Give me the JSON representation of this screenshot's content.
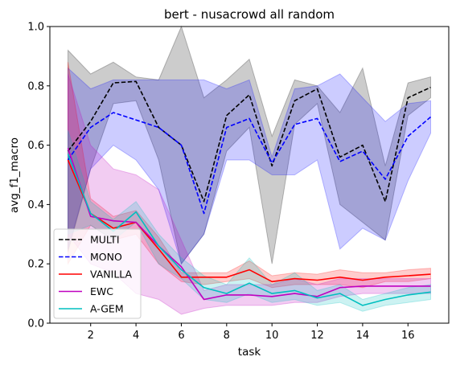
{
  "chart_data": {
    "type": "line",
    "title": "bert - nusacrowd all random",
    "xlabel": "task",
    "ylabel": "avg_f1_macro",
    "xlim": [
      0.2,
      17.8
    ],
    "ylim": [
      0.0,
      1.0
    ],
    "xticks": [
      2,
      4,
      6,
      8,
      10,
      12,
      14,
      16
    ],
    "yticks": [
      0.0,
      0.2,
      0.4,
      0.6,
      0.8,
      1.0
    ],
    "legend_position": "lower-left",
    "grid": false,
    "x": [
      1,
      2,
      3,
      4,
      5,
      6,
      7,
      8,
      9,
      10,
      11,
      12,
      13,
      14,
      15,
      16,
      17
    ],
    "series": [
      {
        "name": "MULTI",
        "color": "#000000",
        "dash": true,
        "values": [
          0.58,
          0.68,
          0.81,
          0.815,
          0.66,
          0.6,
          0.41,
          0.7,
          0.77,
          0.53,
          0.75,
          0.79,
          0.56,
          0.6,
          0.41,
          0.76,
          0.795
        ],
        "lower": [
          0.24,
          0.52,
          0.74,
          0.75,
          0.55,
          0.2,
          0.3,
          0.58,
          0.66,
          0.2,
          0.67,
          0.74,
          0.4,
          0.34,
          0.28,
          0.7,
          0.76
        ],
        "upper": [
          0.92,
          0.84,
          0.88,
          0.83,
          0.82,
          1.0,
          0.76,
          0.82,
          0.89,
          0.63,
          0.82,
          0.8,
          0.71,
          0.86,
          0.53,
          0.81,
          0.83
        ]
      },
      {
        "name": "MONO",
        "color": "#0000ff",
        "dash": true,
        "values": [
          0.55,
          0.66,
          0.71,
          0.685,
          0.66,
          0.6,
          0.37,
          0.66,
          0.69,
          0.54,
          0.67,
          0.69,
          0.545,
          0.58,
          0.485,
          0.63,
          0.695
        ],
        "lower": [
          0.25,
          0.52,
          0.6,
          0.55,
          0.45,
          0.2,
          0.3,
          0.55,
          0.55,
          0.5,
          0.5,
          0.55,
          0.25,
          0.32,
          0.28,
          0.48,
          0.64
        ],
        "upper": [
          0.86,
          0.79,
          0.82,
          0.82,
          0.82,
          0.82,
          0.82,
          0.79,
          0.82,
          0.56,
          0.79,
          0.8,
          0.84,
          0.76,
          0.68,
          0.74,
          0.75
        ]
      },
      {
        "name": "VANILLA",
        "color": "#ff0000",
        "dash": false,
        "values": [
          0.55,
          0.37,
          0.32,
          0.34,
          0.25,
          0.155,
          0.155,
          0.155,
          0.18,
          0.14,
          0.15,
          0.145,
          0.155,
          0.145,
          0.155,
          0.16,
          0.165
        ],
        "lower": [
          0.2,
          0.33,
          0.28,
          0.3,
          0.2,
          0.14,
          0.13,
          0.14,
          0.15,
          0.12,
          0.13,
          0.13,
          0.13,
          0.12,
          0.14,
          0.14,
          0.15
        ],
        "upper": [
          0.88,
          0.42,
          0.36,
          0.38,
          0.29,
          0.17,
          0.17,
          0.17,
          0.21,
          0.16,
          0.17,
          0.165,
          0.18,
          0.17,
          0.17,
          0.18,
          0.185
        ]
      },
      {
        "name": "EWC",
        "color": "#c000c0",
        "dash": false,
        "values": [
          0.59,
          0.36,
          0.345,
          0.34,
          0.26,
          0.19,
          0.08,
          0.095,
          0.095,
          0.09,
          0.1,
          0.09,
          0.12,
          0.125,
          0.125,
          0.125,
          0.125
        ],
        "lower": [
          0.3,
          0.2,
          0.17,
          0.1,
          0.08,
          0.03,
          0.05,
          0.06,
          0.06,
          0.06,
          0.07,
          0.07,
          0.09,
          0.1,
          0.1,
          0.1,
          0.1
        ],
        "upper": [
          0.84,
          0.6,
          0.52,
          0.5,
          0.45,
          0.28,
          0.11,
          0.13,
          0.13,
          0.13,
          0.15,
          0.13,
          0.15,
          0.15,
          0.15,
          0.15,
          0.15
        ]
      },
      {
        "name": "A-GEM",
        "color": "#00bfbf",
        "dash": false,
        "values": [
          0.57,
          0.37,
          0.31,
          0.375,
          0.26,
          0.18,
          0.12,
          0.1,
          0.135,
          0.1,
          0.11,
          0.085,
          0.1,
          0.06,
          0.08,
          0.095,
          0.105
        ],
        "lower": [
          0.3,
          0.33,
          0.28,
          0.34,
          0.2,
          0.15,
          0.08,
          0.07,
          0.1,
          0.07,
          0.08,
          0.06,
          0.07,
          0.04,
          0.06,
          0.07,
          0.08
        ],
        "upper": [
          0.65,
          0.41,
          0.35,
          0.41,
          0.3,
          0.22,
          0.16,
          0.13,
          0.22,
          0.13,
          0.17,
          0.11,
          0.13,
          0.08,
          0.1,
          0.12,
          0.13
        ]
      }
    ]
  }
}
